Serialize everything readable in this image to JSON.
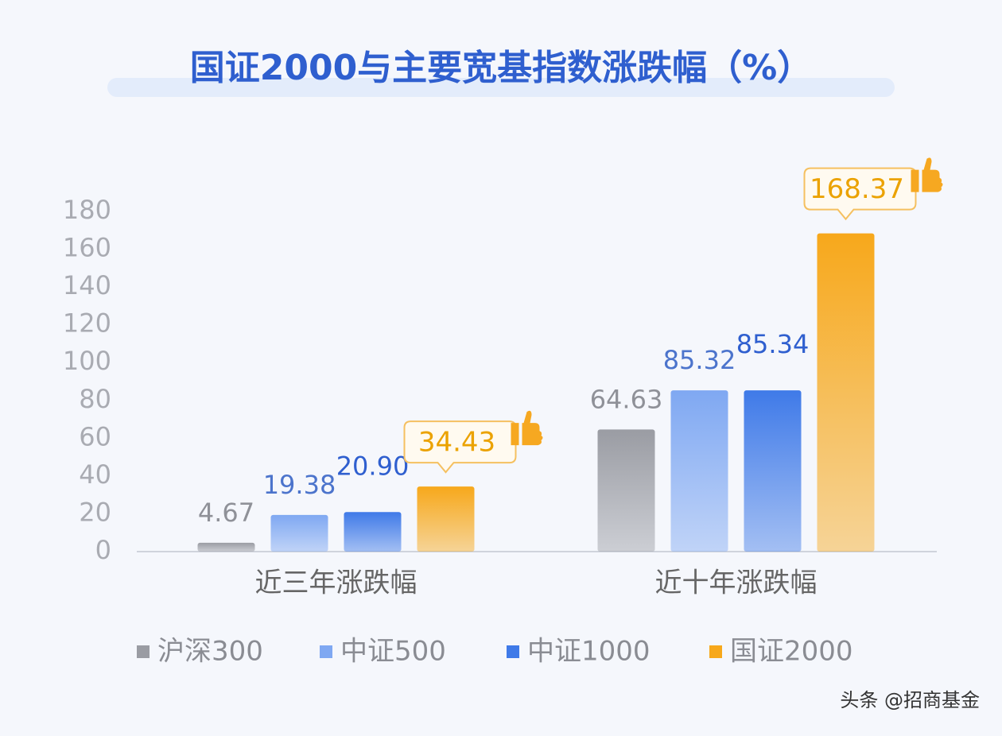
{
  "chart_data": {
    "type": "bar",
    "title": "国证2000与主要宽基指数涨跌幅（%）",
    "categories": [
      "近三年涨跌幅",
      "近十年涨跌幅"
    ],
    "series": [
      {
        "name": "沪深300",
        "color": "#9a9ca3",
        "values": [
          4.67,
          64.63
        ]
      },
      {
        "name": "中证500",
        "color": "#7fa8f2",
        "values": [
          19.38,
          85.32
        ]
      },
      {
        "name": "中证1000",
        "color": "#3f7ae8",
        "values": [
          20.9,
          85.34
        ],
        "value_labels": [
          "20.90",
          "85.34"
        ]
      },
      {
        "name": "国证2000",
        "color": "#f7a81b",
        "values": [
          34.43,
          168.37
        ]
      }
    ],
    "ylim": [
      0,
      180
    ],
    "yticks": [
      0,
      20,
      40,
      60,
      80,
      100,
      120,
      140,
      160,
      180
    ],
    "grid": false,
    "legend": "bottom",
    "watermark": "头条 @招商基金"
  }
}
